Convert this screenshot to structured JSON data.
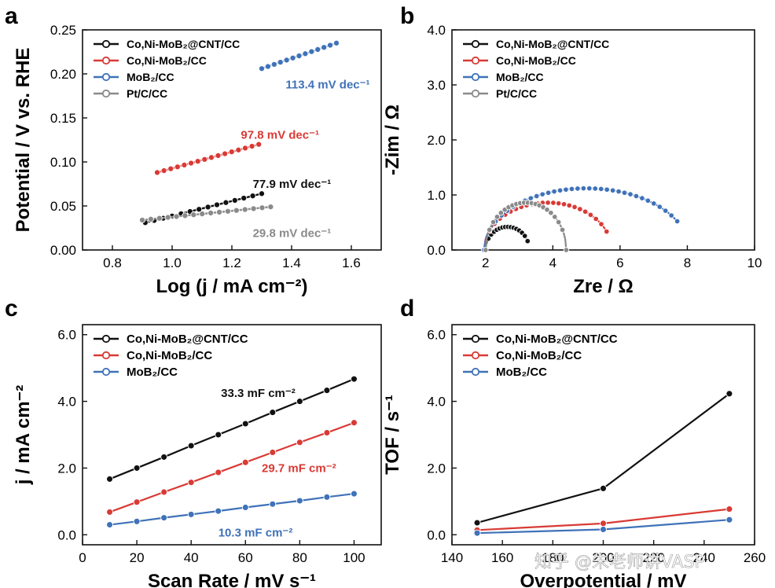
{
  "colors": {
    "black": "#111111",
    "red": "#d93a35",
    "blue": "#3f72b8",
    "gray": "#8a8a8a"
  },
  "watermark": "知乎 @朱老师讲VASP",
  "chart_data": [
    {
      "panel": "a",
      "type": "line",
      "xlabel": "Log (j / mA cm⁻²)",
      "ylabel": "Potential / V vs. RHE",
      "xlim": [
        0.7,
        1.7
      ],
      "ylim": [
        0.0,
        0.25
      ],
      "xticks": [
        0.8,
        1.0,
        1.2,
        1.4,
        1.6
      ],
      "yticks": [
        0.0,
        0.05,
        0.1,
        0.15,
        0.2,
        0.25
      ],
      "xtick_labels": [
        "0.8",
        "1.0",
        "1.2",
        "1.4",
        "1.6"
      ],
      "ytick_labels": [
        "0.00",
        "0.05",
        "0.10",
        "0.15",
        "0.20",
        "0.25"
      ],
      "legend": {
        "position": "top-left",
        "entries": [
          "Co,Ni-MoB₂@CNT/CC",
          "Co,Ni-MoB₂/CC",
          "MoB₂/CC",
          "Pt/C/CC"
        ]
      },
      "series": [
        {
          "name": "Co,Ni-MoB₂@CNT/CC",
          "color": "#111111",
          "x_start": 0.91,
          "x_end": 1.3,
          "y_start": 0.031,
          "y_end": 0.064,
          "n_markers": 14,
          "annotation": "77.9 mV dec⁻¹",
          "annotation_at": [
            1.27,
            0.075
          ]
        },
        {
          "name": "Co,Ni-MoB₂/CC",
          "color": "#d93a35",
          "x_start": 0.95,
          "x_end": 1.29,
          "y_start": 0.088,
          "y_end": 0.12,
          "n_markers": 16,
          "annotation": "97.8 mV dec⁻¹",
          "annotation_at": [
            1.23,
            0.131
          ]
        },
        {
          "name": "MoB₂/CC",
          "color": "#3f72b8",
          "x_start": 1.3,
          "x_end": 1.55,
          "y_start": 0.206,
          "y_end": 0.235,
          "n_markers": 13,
          "annotation": "113.4 mV dec⁻¹",
          "annotation_at": [
            1.38,
            0.188
          ]
        },
        {
          "name": "Pt/C/CC",
          "color": "#8a8a8a",
          "x_start": 0.9,
          "x_end": 1.33,
          "y_start": 0.034,
          "y_end": 0.049,
          "n_markers": 16,
          "annotation": "29.8 mV dec⁻¹",
          "annotation_at": [
            1.27,
            0.019
          ]
        }
      ]
    },
    {
      "panel": "b",
      "type": "scatter",
      "xlabel": "Zre / Ω",
      "ylabel": "-Zim / Ω",
      "xlim": [
        1,
        10
      ],
      "ylim": [
        0.0,
        4.0
      ],
      "xticks": [
        2,
        4,
        6,
        8,
        10
      ],
      "yticks": [
        0.0,
        1.0,
        2.0,
        3.0,
        4.0
      ],
      "xtick_labels": [
        "2",
        "4",
        "6",
        "8",
        "10"
      ],
      "ytick_labels": [
        "0.0",
        "1.0",
        "2.0",
        "3.0",
        "4.0"
      ],
      "legend": {
        "position": "top-left",
        "entries": [
          "Co,Ni-MoB₂@CNT/CC",
          "Co,Ni-MoB₂/CC",
          "MoB₂/CC",
          "Pt/C/CC"
        ]
      },
      "series": [
        {
          "name": "Co,Ni-MoB₂@CNT/CC",
          "color": "#111111",
          "arc_start": 2.0,
          "arc_radius": 0.65,
          "y_peak": 0.42,
          "x_end": 3.25,
          "n_markers": 16
        },
        {
          "name": "Co,Ni-MoB₂/CC",
          "color": "#d93a35",
          "arc_start": 1.95,
          "arc_radius": 1.9,
          "y_peak": 0.86,
          "x_end": 5.6,
          "n_markers": 24
        },
        {
          "name": "MoB₂/CC",
          "color": "#3f72b8",
          "arc_start": 1.95,
          "arc_radius": 3.05,
          "y_peak": 1.12,
          "x_end": 7.7,
          "n_markers": 34
        },
        {
          "name": "Pt/C/CC",
          "color": "#8a8a8a",
          "arc_start": 2.0,
          "arc_radius": 1.2,
          "y_peak": 0.86,
          "x_end": 4.4,
          "n_markers": 22
        }
      ]
    },
    {
      "panel": "c",
      "type": "line",
      "xlabel": "Scan Rate / mV s⁻¹",
      "ylabel": "j / mA cm⁻²",
      "xlim": [
        0,
        110
      ],
      "ylim": [
        -0.3,
        6.3
      ],
      "xticks": [
        0,
        20,
        40,
        60,
        80,
        100
      ],
      "yticks": [
        0.0,
        2.0,
        4.0,
        6.0
      ],
      "xtick_labels": [
        "0",
        "20",
        "40",
        "60",
        "80",
        "100"
      ],
      "ytick_labels": [
        "0.0",
        "2.0",
        "4.0",
        "6.0"
      ],
      "legend": {
        "position": "top-left",
        "entries": [
          "Co,Ni-MoB₂@CNT/CC",
          "Co,Ni-MoB₂/CC",
          "MoB₂/CC"
        ]
      },
      "x": [
        10,
        20,
        30,
        40,
        50,
        60,
        70,
        80,
        90,
        100
      ],
      "series": [
        {
          "name": "Co,Ni-MoB₂@CNT/CC",
          "color": "#111111",
          "values": [
            1.67,
            2.0,
            2.33,
            2.67,
            3.0,
            3.33,
            3.67,
            4.0,
            4.33,
            4.67
          ],
          "annotation": "33.3 mF cm⁻²",
          "annotation_at": [
            51,
            4.25
          ]
        },
        {
          "name": "Co,Ni-MoB₂/CC",
          "color": "#d93a35",
          "values": [
            0.68,
            0.98,
            1.28,
            1.57,
            1.87,
            2.17,
            2.47,
            2.77,
            3.06,
            3.36
          ],
          "annotation": "29.7 mF cm⁻²",
          "annotation_at": [
            66,
            2.0
          ]
        },
        {
          "name": "MoB₂/CC",
          "color": "#3f72b8",
          "values": [
            0.3,
            0.4,
            0.51,
            0.61,
            0.71,
            0.82,
            0.92,
            1.02,
            1.13,
            1.23
          ],
          "annotation": "10.3 mF cm⁻²",
          "annotation_at": [
            50,
            0.07
          ]
        }
      ]
    },
    {
      "panel": "d",
      "type": "line",
      "xlabel": "Overpotential / mV",
      "ylabel": "TOF / s⁻¹",
      "xlim": [
        140,
        260
      ],
      "ylim": [
        -0.3,
        6.3
      ],
      "xticks": [
        140,
        160,
        180,
        200,
        220,
        240,
        260
      ],
      "yticks": [
        0.0,
        2.0,
        4.0,
        6.0
      ],
      "xtick_labels": [
        "140",
        "160",
        "180",
        "200",
        "220",
        "240",
        "260"
      ],
      "ytick_labels": [
        "0.0",
        "2.0",
        "4.0",
        "6.0"
      ],
      "legend": {
        "position": "top-left",
        "entries": [
          "Co,Ni-MoB₂@CNT/CC",
          "Co,Ni-MoB₂/CC",
          "MoB₂/CC"
        ]
      },
      "x": [
        150,
        200,
        250
      ],
      "series": [
        {
          "name": "Co,Ni-MoB₂@CNT/CC",
          "color": "#111111",
          "values": [
            0.36,
            1.39,
            4.23
          ]
        },
        {
          "name": "Co,Ni-MoB₂/CC",
          "color": "#d93a35",
          "values": [
            0.14,
            0.34,
            0.77
          ]
        },
        {
          "name": "MoB₂/CC",
          "color": "#3f72b8",
          "values": [
            0.05,
            0.16,
            0.45
          ]
        }
      ]
    }
  ]
}
